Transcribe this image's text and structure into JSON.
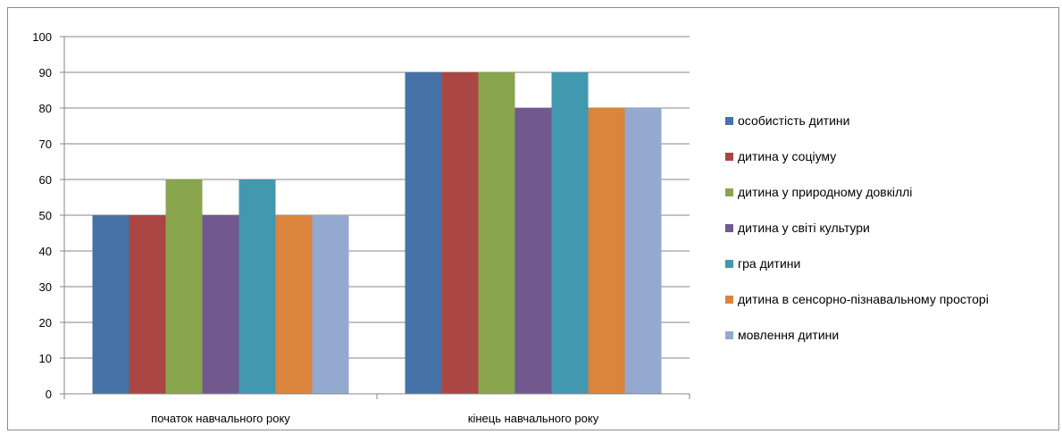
{
  "chart_data": {
    "type": "bar",
    "title": "",
    "xlabel": "",
    "ylabel": "",
    "ylim": [
      0,
      100
    ],
    "yticks": [
      0,
      10,
      20,
      30,
      40,
      50,
      60,
      70,
      80,
      90,
      100
    ],
    "grid": true,
    "legend_position": "right",
    "categories": [
      "початок навчального року",
      "кінець навчального року"
    ],
    "series": [
      {
        "name": "особистість дитини",
        "color": "#4572A7",
        "values": [
          50,
          90
        ]
      },
      {
        "name": "дитина у соціуму",
        "color": "#AA4643",
        "values": [
          50,
          90
        ]
      },
      {
        "name": "дитина у природному довкіллі",
        "color": "#89A54E",
        "values": [
          60,
          90
        ]
      },
      {
        "name": "дитина у світі культури",
        "color": "#71588F",
        "values": [
          50,
          80
        ]
      },
      {
        "name": "гра дитини",
        "color": "#4198AF",
        "values": [
          60,
          90
        ]
      },
      {
        "name": "дитина в сенсорно-пізнавальному просторі",
        "color": "#DB843D",
        "values": [
          50,
          80
        ]
      },
      {
        "name": "мовлення дитини",
        "color": "#93A9CF",
        "values": [
          50,
          80
        ]
      }
    ]
  }
}
